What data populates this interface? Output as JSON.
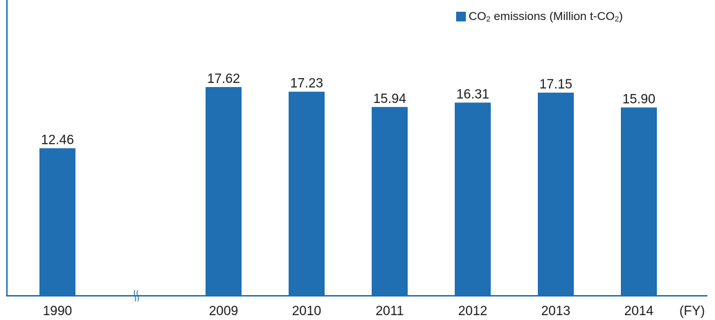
{
  "chart_data": {
    "type": "bar",
    "categories": [
      "1990",
      "2009",
      "2010",
      "2011",
      "2012",
      "2013",
      "2014"
    ],
    "series": [
      {
        "name": "CO₂ emissions (Million t-CO₂)",
        "values": [
          12.46,
          17.62,
          17.23,
          15.94,
          16.31,
          17.15,
          15.9
        ]
      }
    ],
    "value_labels": [
      "12.46",
      "17.62",
      "17.23",
      "15.94",
      "16.31",
      "17.15",
      "15.90"
    ],
    "xlabel": "(FY)",
    "ylabel": "",
    "axis_break_between": [
      "1990",
      "2009"
    ],
    "ylim": [
      0,
      22
    ],
    "grid": false,
    "legend_position": "top-right",
    "colors": {
      "bar": "#1f6fb2",
      "axis": "#1f6fb2",
      "text": "#1a1a1a"
    }
  },
  "legend": {
    "prefix": "CO",
    "sub1": "2",
    "middle": " emissions (Million t-CO",
    "sub2": "2",
    "suffix": ")"
  }
}
